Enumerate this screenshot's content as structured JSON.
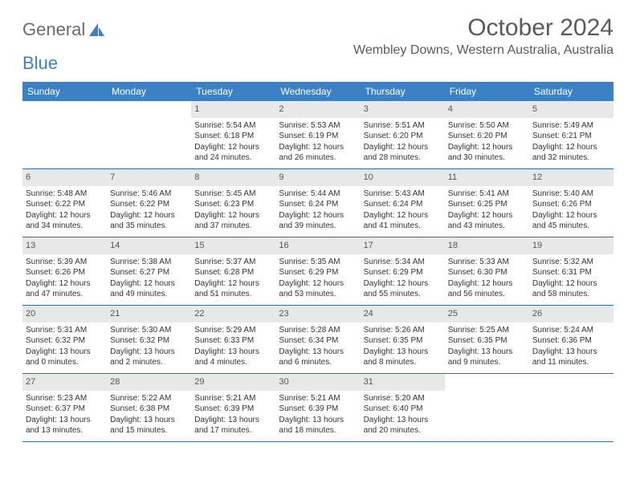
{
  "logo": {
    "text1": "General",
    "text2": "Blue"
  },
  "title": "October 2024",
  "location": "Wembley Downs, Western Australia, Australia",
  "colors": {
    "header_bg": "#3b82c4",
    "header_text": "#ffffff",
    "daynum_bg": "#e8e8e8",
    "week_border": "#3b6fa0",
    "title_color": "#5a5a5a"
  },
  "weekdays": [
    "Sunday",
    "Monday",
    "Tuesday",
    "Wednesday",
    "Thursday",
    "Friday",
    "Saturday"
  ],
  "weeks": [
    [
      null,
      null,
      {
        "n": "1",
        "sr": "5:54 AM",
        "ss": "6:18 PM",
        "dl": "12 hours and 24 minutes."
      },
      {
        "n": "2",
        "sr": "5:53 AM",
        "ss": "6:19 PM",
        "dl": "12 hours and 26 minutes."
      },
      {
        "n": "3",
        "sr": "5:51 AM",
        "ss": "6:20 PM",
        "dl": "12 hours and 28 minutes."
      },
      {
        "n": "4",
        "sr": "5:50 AM",
        "ss": "6:20 PM",
        "dl": "12 hours and 30 minutes."
      },
      {
        "n": "5",
        "sr": "5:49 AM",
        "ss": "6:21 PM",
        "dl": "12 hours and 32 minutes."
      }
    ],
    [
      {
        "n": "6",
        "sr": "5:48 AM",
        "ss": "6:22 PM",
        "dl": "12 hours and 34 minutes."
      },
      {
        "n": "7",
        "sr": "5:46 AM",
        "ss": "6:22 PM",
        "dl": "12 hours and 35 minutes."
      },
      {
        "n": "8",
        "sr": "5:45 AM",
        "ss": "6:23 PM",
        "dl": "12 hours and 37 minutes."
      },
      {
        "n": "9",
        "sr": "5:44 AM",
        "ss": "6:24 PM",
        "dl": "12 hours and 39 minutes."
      },
      {
        "n": "10",
        "sr": "5:43 AM",
        "ss": "6:24 PM",
        "dl": "12 hours and 41 minutes."
      },
      {
        "n": "11",
        "sr": "5:41 AM",
        "ss": "6:25 PM",
        "dl": "12 hours and 43 minutes."
      },
      {
        "n": "12",
        "sr": "5:40 AM",
        "ss": "6:26 PM",
        "dl": "12 hours and 45 minutes."
      }
    ],
    [
      {
        "n": "13",
        "sr": "5:39 AM",
        "ss": "6:26 PM",
        "dl": "12 hours and 47 minutes."
      },
      {
        "n": "14",
        "sr": "5:38 AM",
        "ss": "6:27 PM",
        "dl": "12 hours and 49 minutes."
      },
      {
        "n": "15",
        "sr": "5:37 AM",
        "ss": "6:28 PM",
        "dl": "12 hours and 51 minutes."
      },
      {
        "n": "16",
        "sr": "5:35 AM",
        "ss": "6:29 PM",
        "dl": "12 hours and 53 minutes."
      },
      {
        "n": "17",
        "sr": "5:34 AM",
        "ss": "6:29 PM",
        "dl": "12 hours and 55 minutes."
      },
      {
        "n": "18",
        "sr": "5:33 AM",
        "ss": "6:30 PM",
        "dl": "12 hours and 56 minutes."
      },
      {
        "n": "19",
        "sr": "5:32 AM",
        "ss": "6:31 PM",
        "dl": "12 hours and 58 minutes."
      }
    ],
    [
      {
        "n": "20",
        "sr": "5:31 AM",
        "ss": "6:32 PM",
        "dl": "13 hours and 0 minutes."
      },
      {
        "n": "21",
        "sr": "5:30 AM",
        "ss": "6:32 PM",
        "dl": "13 hours and 2 minutes."
      },
      {
        "n": "22",
        "sr": "5:29 AM",
        "ss": "6:33 PM",
        "dl": "13 hours and 4 minutes."
      },
      {
        "n": "23",
        "sr": "5:28 AM",
        "ss": "6:34 PM",
        "dl": "13 hours and 6 minutes."
      },
      {
        "n": "24",
        "sr": "5:26 AM",
        "ss": "6:35 PM",
        "dl": "13 hours and 8 minutes."
      },
      {
        "n": "25",
        "sr": "5:25 AM",
        "ss": "6:35 PM",
        "dl": "13 hours and 9 minutes."
      },
      {
        "n": "26",
        "sr": "5:24 AM",
        "ss": "6:36 PM",
        "dl": "13 hours and 11 minutes."
      }
    ],
    [
      {
        "n": "27",
        "sr": "5:23 AM",
        "ss": "6:37 PM",
        "dl": "13 hours and 13 minutes."
      },
      {
        "n": "28",
        "sr": "5:22 AM",
        "ss": "6:38 PM",
        "dl": "13 hours and 15 minutes."
      },
      {
        "n": "29",
        "sr": "5:21 AM",
        "ss": "6:39 PM",
        "dl": "13 hours and 17 minutes."
      },
      {
        "n": "30",
        "sr": "5:21 AM",
        "ss": "6:39 PM",
        "dl": "13 hours and 18 minutes."
      },
      {
        "n": "31",
        "sr": "5:20 AM",
        "ss": "6:40 PM",
        "dl": "13 hours and 20 minutes."
      },
      null,
      null
    ]
  ],
  "labels": {
    "sunrise": "Sunrise:",
    "sunset": "Sunset:",
    "daylight": "Daylight:"
  }
}
